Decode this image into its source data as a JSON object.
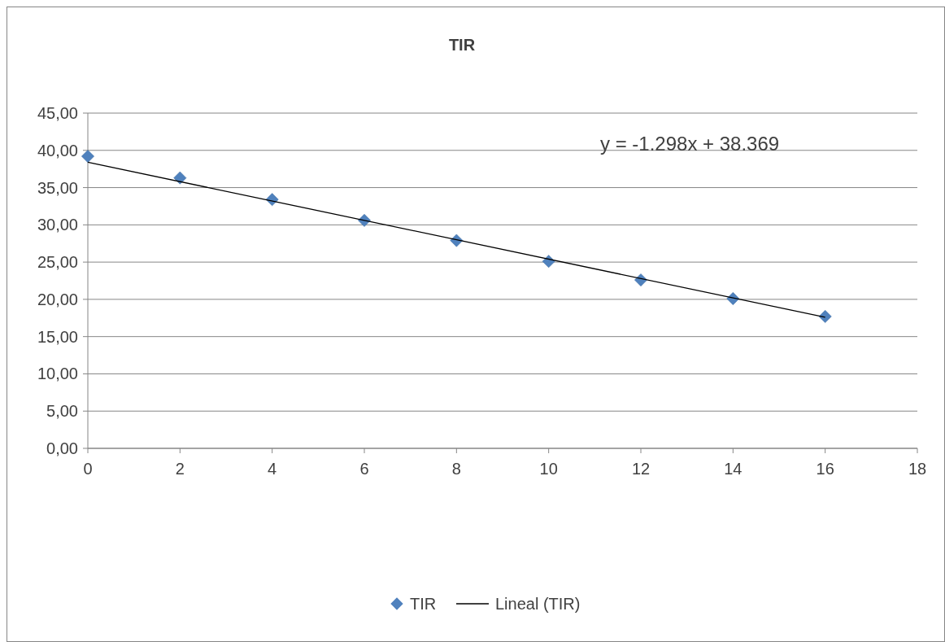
{
  "chart_data": {
    "type": "scatter",
    "title": "TIR",
    "x": [
      0,
      2,
      4,
      6,
      8,
      10,
      12,
      14,
      16
    ],
    "series": [
      {
        "name": "TIR",
        "color": "#4f81bd",
        "marker": "diamond",
        "values": [
          39.2,
          36.3,
          33.4,
          30.6,
          27.9,
          25.1,
          22.6,
          20.1,
          17.7
        ]
      },
      {
        "name": "Lineal (TIR)",
        "type": "line",
        "color": "#000000",
        "x": [
          0,
          16
        ],
        "values": [
          38.4,
          17.6
        ]
      }
    ],
    "xlim": [
      0,
      18
    ],
    "xticks": [
      0,
      2,
      4,
      6,
      8,
      10,
      12,
      14,
      16,
      18
    ],
    "ylim": [
      0,
      45
    ],
    "yticks": [
      {
        "value": 0,
        "label": "0,00"
      },
      {
        "value": 5,
        "label": "5,00"
      },
      {
        "value": 10,
        "label": "10,00"
      },
      {
        "value": 15,
        "label": "15,00"
      },
      {
        "value": 20,
        "label": "20,00"
      },
      {
        "value": 25,
        "label": "25,00"
      },
      {
        "value": 30,
        "label": "30,00"
      },
      {
        "value": 35,
        "label": "35,00"
      },
      {
        "value": 40,
        "label": "40,00"
      },
      {
        "value": 45,
        "label": "45,00"
      }
    ],
    "grid": "y",
    "legend": "bottom",
    "annotations": [
      "y = -1.298x + 38.369"
    ]
  }
}
